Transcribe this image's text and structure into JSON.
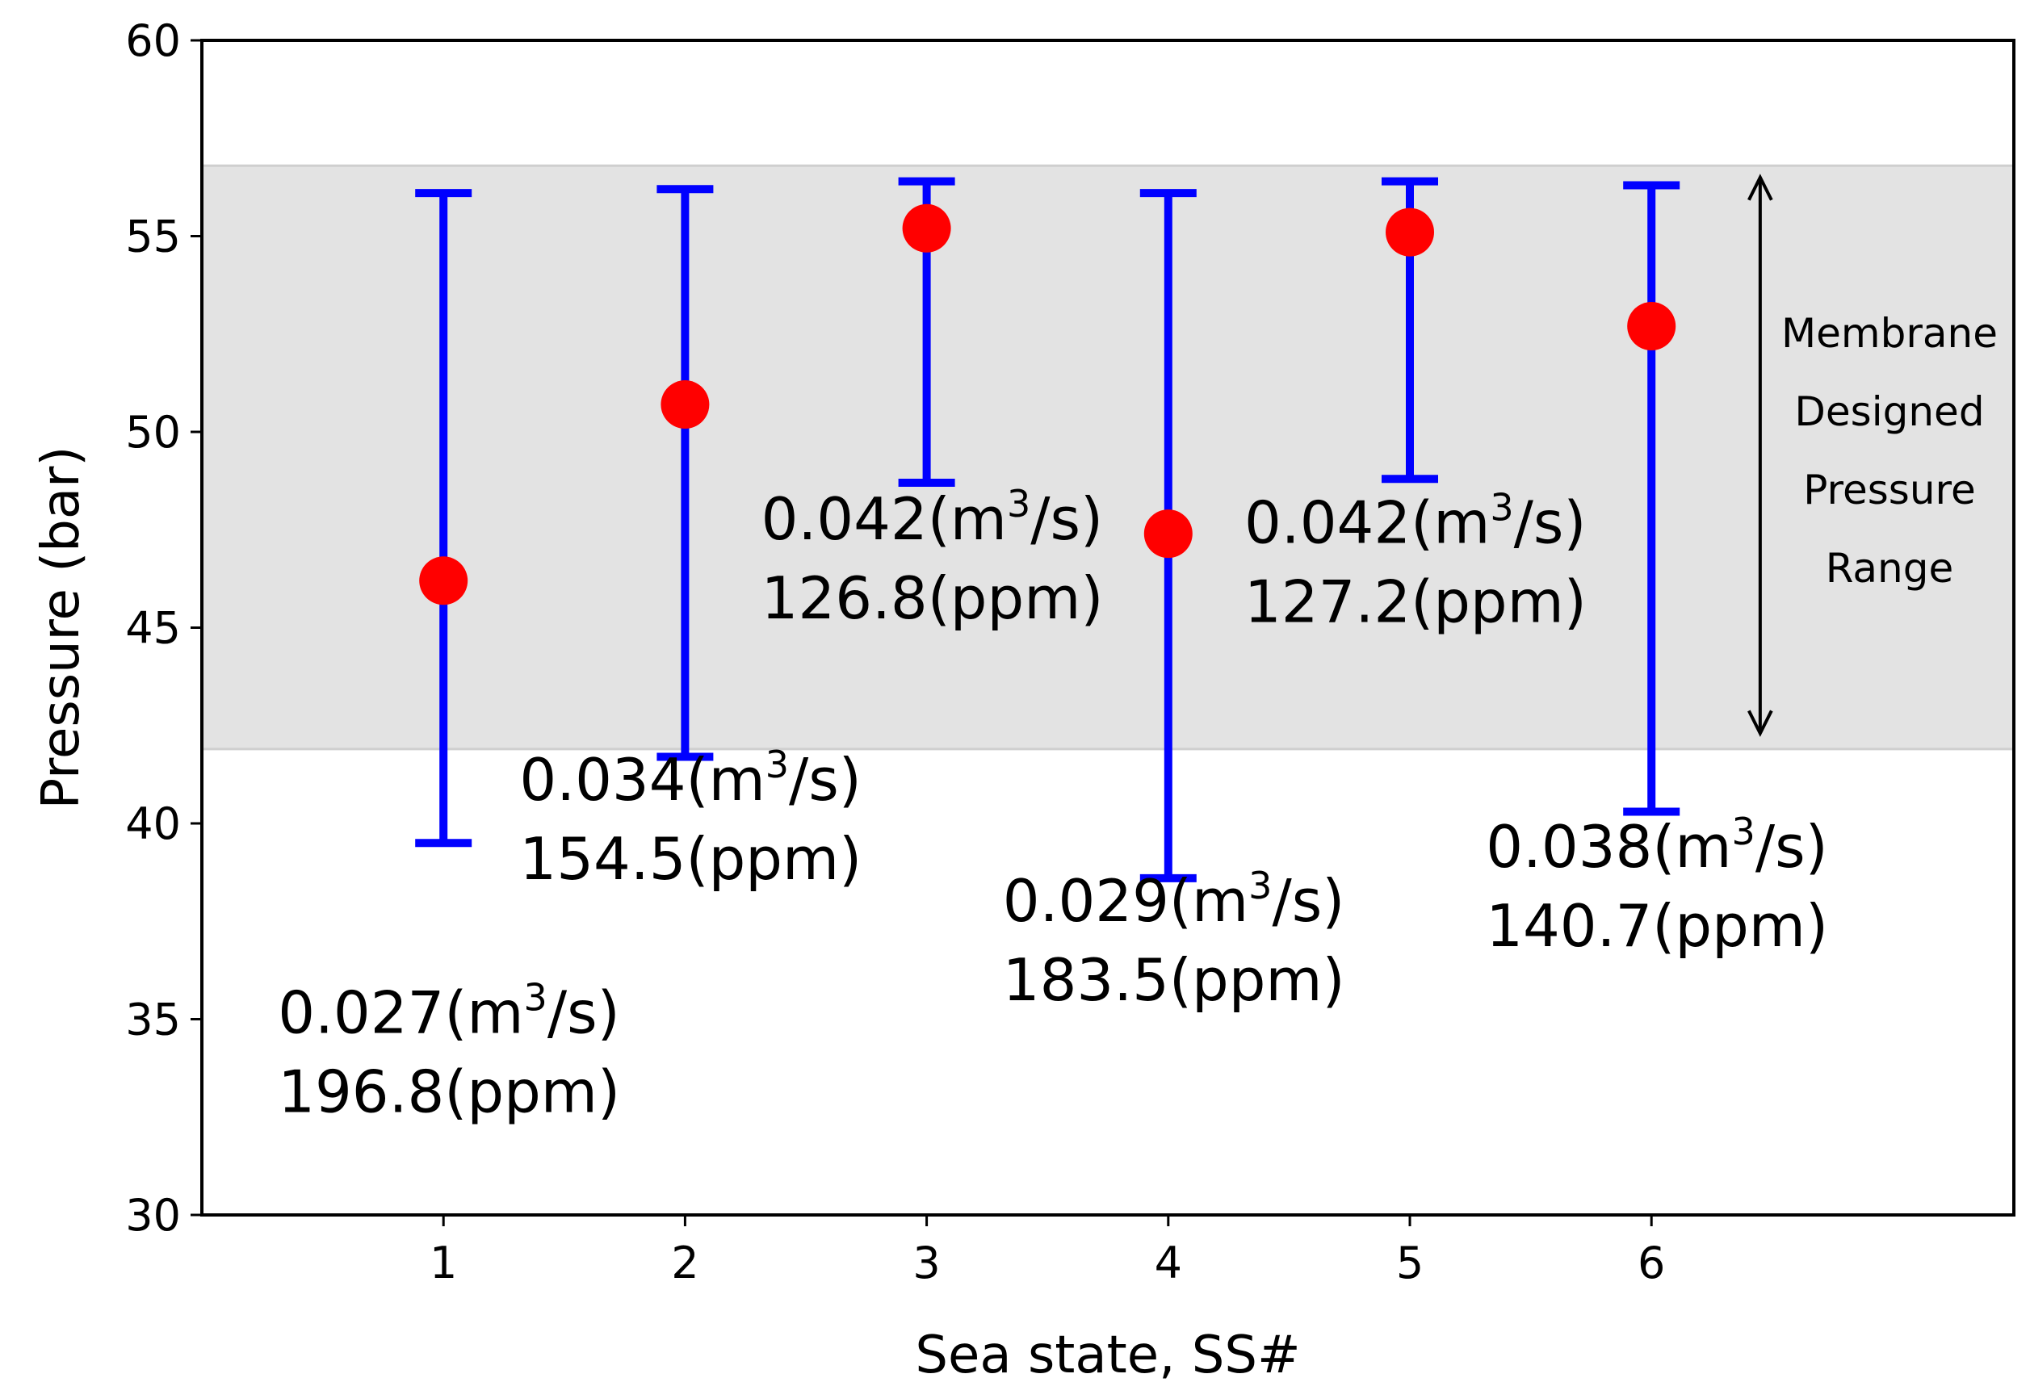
{
  "chart_data": {
    "type": "errorbar",
    "title": "",
    "xlabel": "Sea state, SS#",
    "ylabel": "Pressure (bar)",
    "xlim": [
      0,
      7.5
    ],
    "ylim": [
      30,
      60
    ],
    "xticks": [
      1,
      2,
      3,
      4,
      5,
      6
    ],
    "yticks": [
      30,
      35,
      40,
      45,
      50,
      55,
      60
    ],
    "band": {
      "y_min": 41.9,
      "y_max": 56.8,
      "color": "#e3e3e3"
    },
    "series": [
      {
        "name": "Pressure",
        "marker_color": "#ff0000",
        "errorbar_color": "#0000ff",
        "points": [
          {
            "x": 1,
            "y": 46.2,
            "low": 39.5,
            "high": 56.1,
            "flow_value": "0.027",
            "flow_unit_base": "(m",
            "flow_unit_exp": "3",
            "flow_unit_tail": "/s)",
            "conc": "196.8(ppm)"
          },
          {
            "x": 2,
            "y": 50.7,
            "low": 41.7,
            "high": 56.2,
            "flow_value": "0.034",
            "flow_unit_base": "(m",
            "flow_unit_exp": "3",
            "flow_unit_tail": "/s)",
            "conc": "154.5(ppm)"
          },
          {
            "x": 3,
            "y": 55.2,
            "low": 48.7,
            "high": 56.4,
            "flow_value": "0.042",
            "flow_unit_base": "(m",
            "flow_unit_exp": "3",
            "flow_unit_tail": "/s)",
            "conc": "126.8(ppm)"
          },
          {
            "x": 4,
            "y": 47.4,
            "low": 38.6,
            "high": 56.1,
            "flow_value": "0.029",
            "flow_unit_base": "(m",
            "flow_unit_exp": "3",
            "flow_unit_tail": "/s)",
            "conc": "183.5(ppm)"
          },
          {
            "x": 5,
            "y": 55.1,
            "low": 48.8,
            "high": 56.4,
            "flow_value": "0.042",
            "flow_unit_base": "(m",
            "flow_unit_exp": "3",
            "flow_unit_tail": "/s)",
            "conc": "127.2(ppm)"
          },
          {
            "x": 6,
            "y": 52.7,
            "low": 40.3,
            "high": 56.3,
            "flow_value": "0.038",
            "flow_unit_base": "(m",
            "flow_unit_exp": "3",
            "flow_unit_tail": "/s)",
            "conc": "140.7(ppm)"
          }
        ]
      }
    ],
    "range_annotation": {
      "lines": [
        "Membrane",
        "Designed",
        "Pressure",
        "Range"
      ],
      "x": 6.45,
      "y_from": 56.5,
      "y_to": 42.3
    }
  }
}
